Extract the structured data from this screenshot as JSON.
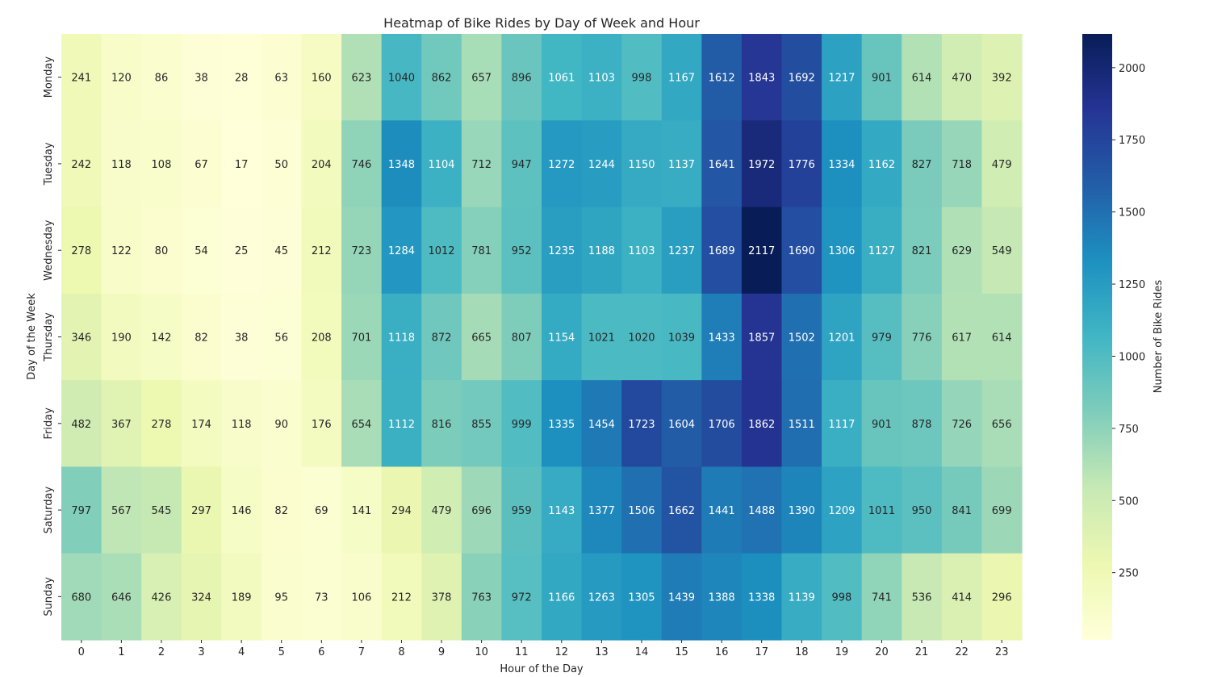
{
  "chart_data": {
    "type": "heatmap",
    "title": "Heatmap of Bike Rides by Day of Week and Hour",
    "xlabel": "Hour of the Day",
    "ylabel": "Day of the Week",
    "colorbar_label": "Number of Bike Rides",
    "colormap": "YlGnBu",
    "x": [
      "0",
      "1",
      "2",
      "3",
      "4",
      "5",
      "6",
      "7",
      "8",
      "9",
      "10",
      "11",
      "12",
      "13",
      "14",
      "15",
      "16",
      "17",
      "18",
      "19",
      "20",
      "21",
      "22",
      "23"
    ],
    "y": [
      "Monday",
      "Tuesday",
      "Wednesday",
      "Thursday",
      "Friday",
      "Saturday",
      "Sunday"
    ],
    "values": [
      [
        241,
        120,
        86,
        38,
        28,
        63,
        160,
        623,
        1040,
        862,
        657,
        896,
        1061,
        1103,
        998,
        1167,
        1612,
        1843,
        1692,
        1217,
        901,
        614,
        470,
        392
      ],
      [
        242,
        118,
        108,
        67,
        17,
        50,
        204,
        746,
        1348,
        1104,
        712,
        947,
        1272,
        1244,
        1150,
        1137,
        1641,
        1972,
        1776,
        1334,
        1162,
        827,
        718,
        479
      ],
      [
        278,
        122,
        80,
        54,
        25,
        45,
        212,
        723,
        1284,
        1012,
        781,
        952,
        1235,
        1188,
        1103,
        1237,
        1689,
        2117,
        1690,
        1306,
        1127,
        821,
        629,
        549
      ],
      [
        346,
        190,
        142,
        82,
        38,
        56,
        208,
        701,
        1118,
        872,
        665,
        807,
        1154,
        1021,
        1020,
        1039,
        1433,
        1857,
        1502,
        1201,
        979,
        776,
        617,
        614
      ],
      [
        482,
        367,
        278,
        174,
        118,
        90,
        176,
        654,
        1112,
        816,
        855,
        999,
        1335,
        1454,
        1723,
        1604,
        1706,
        1862,
        1511,
        1117,
        901,
        878,
        726,
        656
      ],
      [
        797,
        567,
        545,
        297,
        146,
        82,
        69,
        141,
        294,
        479,
        696,
        959,
        1143,
        1377,
        1506,
        1662,
        1441,
        1488,
        1390,
        1209,
        1011,
        950,
        841,
        699
      ],
      [
        680,
        646,
        426,
        324,
        189,
        95,
        73,
        106,
        212,
        378,
        763,
        972,
        1166,
        1263,
        1305,
        1439,
        1388,
        1338,
        1139,
        998,
        741,
        536,
        414,
        296
      ]
    ],
    "colorbar_range": [
      17,
      2117
    ],
    "colorbar_ticks": [
      "250",
      "500",
      "750",
      "1000",
      "1250",
      "1500",
      "1750",
      "2000"
    ]
  }
}
